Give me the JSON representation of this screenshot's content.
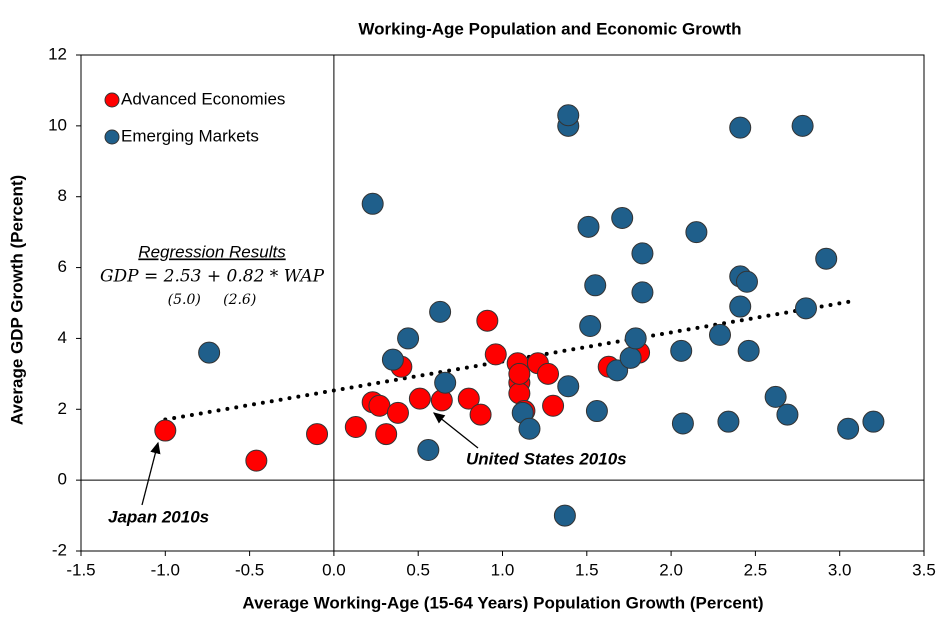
{
  "chart_data": {
    "type": "scatter",
    "title": "Working-Age Population and Economic Growth",
    "x_label": "Average Working-Age (15-64 Years) Population Growth (Percent)",
    "y_label": "Average GDP Growth (Percent)",
    "xlim": [
      -1.5,
      3.5
    ],
    "ylim": [
      -2,
      12
    ],
    "xticks": [
      {
        "value": -1.5,
        "label": "-1.5"
      },
      {
        "value": -1.0,
        "label": "-1.0"
      },
      {
        "value": -0.5,
        "label": "-0.5"
      },
      {
        "value": 0,
        "label": "0.0"
      },
      {
        "value": 0.5,
        "label": "0.5"
      },
      {
        "value": 1.0,
        "label": "1.0"
      },
      {
        "value": 1.5,
        "label": "1.5"
      },
      {
        "value": 2.0,
        "label": "2.0"
      },
      {
        "value": 2.5,
        "label": "2.5"
      },
      {
        "value": 3.0,
        "label": "3.0"
      },
      {
        "value": 3.5,
        "label": "3.5"
      }
    ],
    "yticks": [
      -2,
      0,
      2,
      4,
      6,
      8,
      10,
      12
    ],
    "legend_position": "upper left",
    "series": [
      {
        "name": "Advanced Economies",
        "color": "#ff0000",
        "x": [
          -1.0,
          -0.46,
          -0.1,
          0.13,
          0.23,
          0.27,
          0.31,
          0.38,
          0.4,
          0.51,
          0.64,
          0.8,
          0.87,
          0.91,
          0.96,
          1.09,
          1.1,
          1.1,
          1.1,
          1.21,
          1.27,
          1.3,
          1.13,
          1.63,
          1.81
        ],
        "values": [
          1.4,
          0.55,
          1.3,
          1.5,
          2.2,
          2.1,
          1.3,
          1.9,
          3.2,
          2.3,
          2.25,
          2.3,
          1.85,
          4.5,
          3.55,
          3.3,
          2.75,
          2.45,
          3.0,
          3.3,
          3.0,
          2.1,
          1.95,
          3.2,
          3.6
        ]
      },
      {
        "name": "Emerging Markets",
        "color": "#1f5f8b",
        "x": [
          -0.74,
          0.23,
          0.35,
          0.44,
          0.56,
          0.63,
          0.66,
          1.12,
          1.16,
          1.39,
          1.39,
          1.39,
          1.37,
          1.51,
          1.52,
          1.55,
          1.56,
          1.83,
          1.71,
          1.83,
          1.68,
          1.76,
          1.79,
          2.06,
          2.07,
          2.15,
          2.29,
          2.34,
          2.41,
          2.41,
          2.41,
          2.45,
          2.46,
          2.62,
          2.69,
          2.78,
          2.8,
          2.92,
          3.05,
          3.2
        ],
        "values": [
          3.6,
          7.8,
          3.4,
          4.0,
          0.85,
          4.75,
          2.75,
          1.9,
          1.45,
          10.0,
          10.3,
          2.65,
          -1.0,
          7.15,
          4.35,
          5.5,
          1.95,
          5.3,
          7.4,
          6.4,
          3.1,
          3.45,
          4.0,
          3.65,
          1.6,
          7.0,
          4.1,
          1.65,
          9.95,
          5.75,
          4.9,
          5.6,
          3.65,
          2.35,
          1.85,
          10.0,
          4.85,
          6.25,
          1.45,
          1.65
        ]
      }
    ],
    "trend_line": {
      "intercept": 2.53,
      "slope": 0.82,
      "x": [
        -1.0,
        3.1
      ]
    },
    "annotations": {
      "regression_title": "Regression Results",
      "regression_equation": "GDP = 2.53 + 0.82 * WAP",
      "regression_tstats": "(5.0)     (2.6)",
      "japan": "Japan 2010s",
      "us": "United States 2010s"
    }
  }
}
